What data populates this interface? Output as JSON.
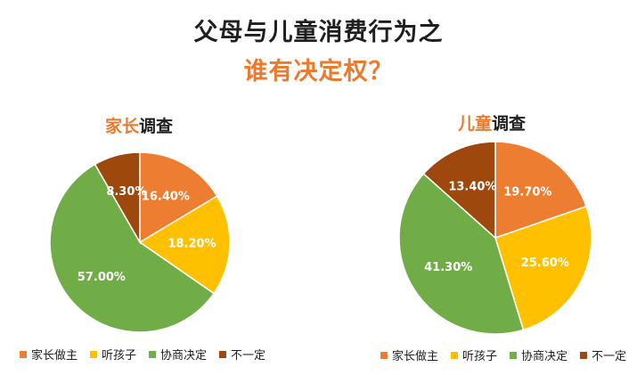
{
  "title_line1": "父母与儿童消费行为之",
  "title_line2": "谁有决定权？",
  "colors": {
    "accent": "#ec7a2c",
    "parent": "#ed7d31",
    "child": "#ffc000",
    "negotiate": "#70ad47",
    "uncertain": "#9e480e"
  },
  "chart_data": [
    {
      "type": "pie",
      "title_highlight": "家长",
      "title_rest": "调查",
      "categories": [
        "家长做主",
        "听孩子",
        "协商决定",
        "不一定"
      ],
      "values": [
        16.4,
        18.2,
        57.0,
        8.3
      ],
      "labels": [
        "16.40%",
        "18.20%",
        "57.00%",
        "8.30%"
      ],
      "legend_position": "bottom",
      "start_angle": "top, clockwise"
    },
    {
      "type": "pie",
      "title_highlight": "儿童",
      "title_rest": "调查",
      "categories": [
        "家长做主",
        "听孩子",
        "协商决定",
        "不一定"
      ],
      "values": [
        19.7,
        25.6,
        41.3,
        13.4
      ],
      "labels": [
        "19.70%",
        "25.60%",
        "41.30%",
        "13.40%"
      ],
      "legend_position": "bottom",
      "start_angle": "top, clockwise"
    }
  ]
}
